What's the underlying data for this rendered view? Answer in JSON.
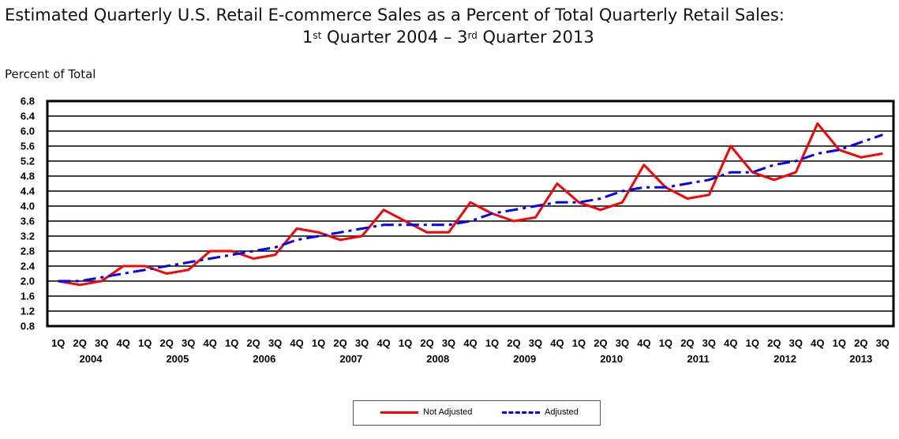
{
  "title": {
    "line1": "Estimated Quarterly U.S. Retail E-commerce Sales as a Percent of Total Quarterly Retail Sales:",
    "line2_a": "1",
    "line2_sup1": "st",
    "line2_b": " Quarter 2004 – 3",
    "line2_sup2": "rd",
    "line2_c": " Quarter 2013"
  },
  "chart_data": {
    "type": "line",
    "title": "Estimated Quarterly U.S. Retail E-commerce Sales as a Percent of Total Quarterly Retail Sales: 1st Quarter 2004 – 3rd Quarter 2013",
    "ylabel": "Percent of Total",
    "ylim": [
      0.8,
      6.8
    ],
    "yticks": [
      "0.8",
      "1.2",
      "1.6",
      "2.0",
      "2.4",
      "2.8",
      "3.2",
      "3.6",
      "4.0",
      "4.4",
      "4.8",
      "5.2",
      "5.6",
      "6.0",
      "6.4",
      "6.8"
    ],
    "categories": [
      "1Q",
      "2Q",
      "3Q",
      "4Q",
      "1Q",
      "2Q",
      "3Q",
      "4Q",
      "1Q",
      "2Q",
      "3Q",
      "4Q",
      "1Q",
      "2Q",
      "3Q",
      "4Q",
      "1Q",
      "2Q",
      "3Q",
      "4Q",
      "1Q",
      "2Q",
      "3Q",
      "4Q",
      "1Q",
      "2Q",
      "3Q",
      "4Q",
      "1Q",
      "2Q",
      "3Q",
      "4Q",
      "1Q",
      "2Q",
      "3Q",
      "4Q",
      "1Q",
      "2Q",
      "3Q"
    ],
    "years": [
      {
        "label": "2004",
        "start": 0
      },
      {
        "label": "2005",
        "start": 4
      },
      {
        "label": "2006",
        "start": 8
      },
      {
        "label": "2007",
        "start": 12
      },
      {
        "label": "2008",
        "start": 16
      },
      {
        "label": "2009",
        "start": 20
      },
      {
        "label": "2010",
        "start": 24
      },
      {
        "label": "2011",
        "start": 28
      },
      {
        "label": "2012",
        "start": 32
      },
      {
        "label": "2013",
        "start": 36
      }
    ],
    "grid": true,
    "legend_position": "bottom-center",
    "series": [
      {
        "name": "Not Adjusted",
        "color": "#ff0000",
        "style": "solid",
        "values": [
          2.0,
          1.9,
          2.0,
          2.4,
          2.4,
          2.2,
          2.3,
          2.8,
          2.8,
          2.6,
          2.7,
          3.4,
          3.3,
          3.1,
          3.2,
          3.9,
          3.6,
          3.3,
          3.3,
          4.1,
          3.8,
          3.6,
          3.7,
          4.6,
          4.1,
          3.9,
          4.1,
          5.1,
          4.5,
          4.2,
          4.3,
          5.6,
          4.9,
          4.7,
          4.9,
          6.2,
          5.5,
          5.3,
          5.4
        ]
      },
      {
        "name": "Adjusted",
        "color": "#0000ff",
        "style": "dash-dot",
        "values": [
          2.0,
          2.0,
          2.1,
          2.2,
          2.3,
          2.4,
          2.5,
          2.6,
          2.7,
          2.8,
          2.9,
          3.1,
          3.2,
          3.3,
          3.4,
          3.5,
          3.5,
          3.5,
          3.5,
          3.6,
          3.8,
          3.9,
          4.0,
          4.1,
          4.1,
          4.2,
          4.4,
          4.5,
          4.5,
          4.6,
          4.7,
          4.9,
          4.9,
          5.1,
          5.2,
          5.4,
          5.5,
          5.7,
          5.9
        ]
      }
    ]
  }
}
